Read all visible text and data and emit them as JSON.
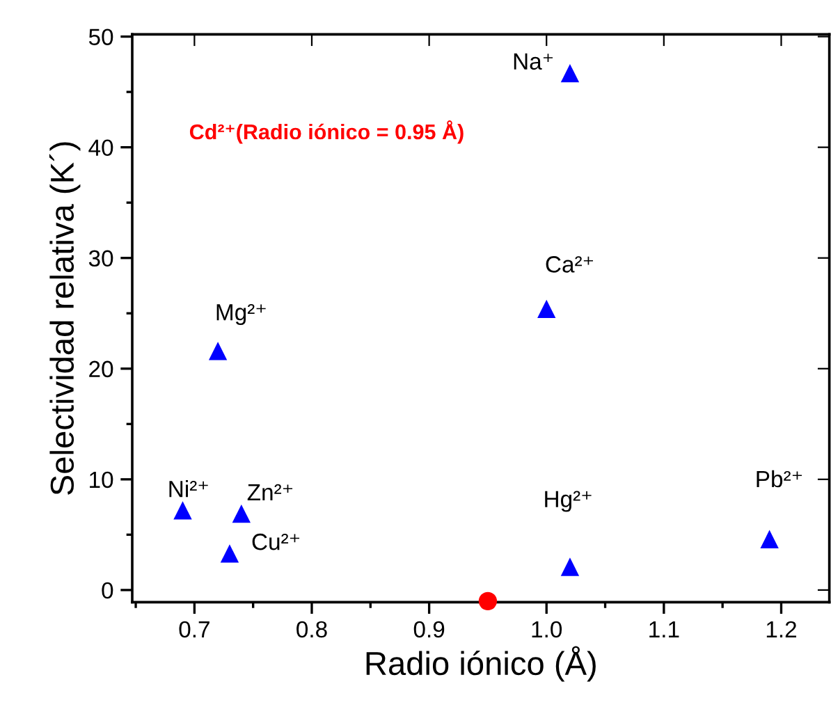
{
  "chart_data": {
    "type": "scatter",
    "xlabel": "Radio iónico (Å)",
    "ylabel": "Selectividad relativa (K´)",
    "series": [
      {
        "marker": "triangle",
        "color": "#0000ff",
        "x": [
          1.02,
          1.0,
          0.72,
          0.69,
          0.74,
          0.73,
          1.02,
          1.19
        ],
        "values": [
          46.7,
          25.4,
          21.6,
          7.2,
          6.9,
          3.3,
          2.1,
          4.6
        ]
      },
      {
        "marker": "circle",
        "color": "#ff0000",
        "x": [
          0.95
        ],
        "values": [
          -1.0
        ]
      }
    ],
    "annotations": [
      {
        "text": "Na⁺",
        "x": 1.02,
        "y": 46.7
      },
      {
        "text": "Ca²⁺",
        "x": 1.0,
        "y": 25.4
      },
      {
        "text": "Mg²⁺",
        "x": 0.72,
        "y": 21.6
      },
      {
        "text": "Ni²⁺",
        "x": 0.69,
        "y": 7.2
      },
      {
        "text": "Zn²⁺",
        "x": 0.74,
        "y": 6.9
      },
      {
        "text": "Cu²⁺",
        "x": 0.73,
        "y": 3.3
      },
      {
        "text": "Hg²⁺",
        "x": 1.02,
        "y": 2.1
      },
      {
        "text": "Pb²⁺",
        "x": 1.19,
        "y": 4.6
      },
      "Cd²⁺(Radio iónico = 0.95 Å)"
    ],
    "xlim": [
      0.647,
      1.241
    ],
    "ylim": [
      -1.1,
      50.2
    ],
    "xticks": [
      0.7,
      0.8,
      0.9,
      {
        "value": 1,
        "label": "1.0"
      },
      1.1,
      1.2
    ],
    "yticks": [
      0,
      10,
      20,
      30,
      40,
      50
    ],
    "grid": false,
    "legend": false
  }
}
